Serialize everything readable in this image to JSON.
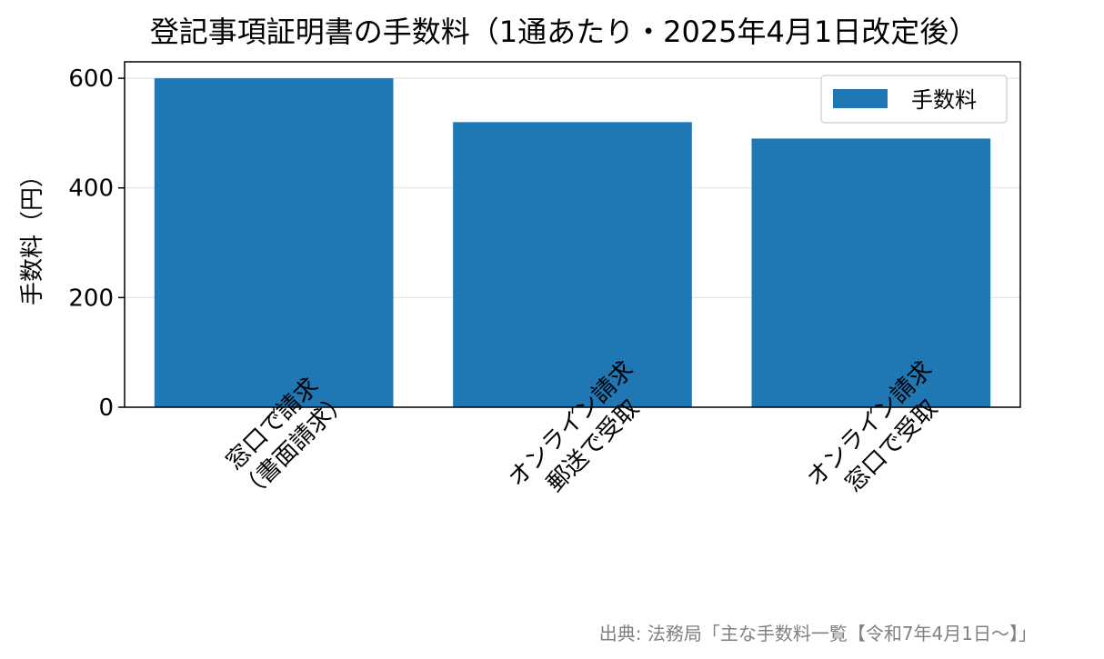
{
  "chart_data": {
    "type": "bar",
    "title": "登記事項証明書の手数料（1通あたり・2025年4月1日改定後）",
    "ylabel": "手数料（円）",
    "xlabel": "",
    "categories": [
      [
        "窓口で請求",
        "（書面請求）"
      ],
      [
        "オンライン請求",
        "郵送で受取"
      ],
      [
        "オンライン請求",
        "窓口で受取"
      ]
    ],
    "series": [
      {
        "name": "手数料",
        "values": [
          600,
          520,
          490
        ],
        "color": "#1f77b4"
      }
    ],
    "ylim": [
      0,
      630
    ],
    "yticks": [
      0,
      200,
      400,
      600
    ],
    "grid": true,
    "legend_position": "top-right",
    "source": "出典: 法務局「主な手数料一覧【令和7年4月1日〜】」"
  }
}
